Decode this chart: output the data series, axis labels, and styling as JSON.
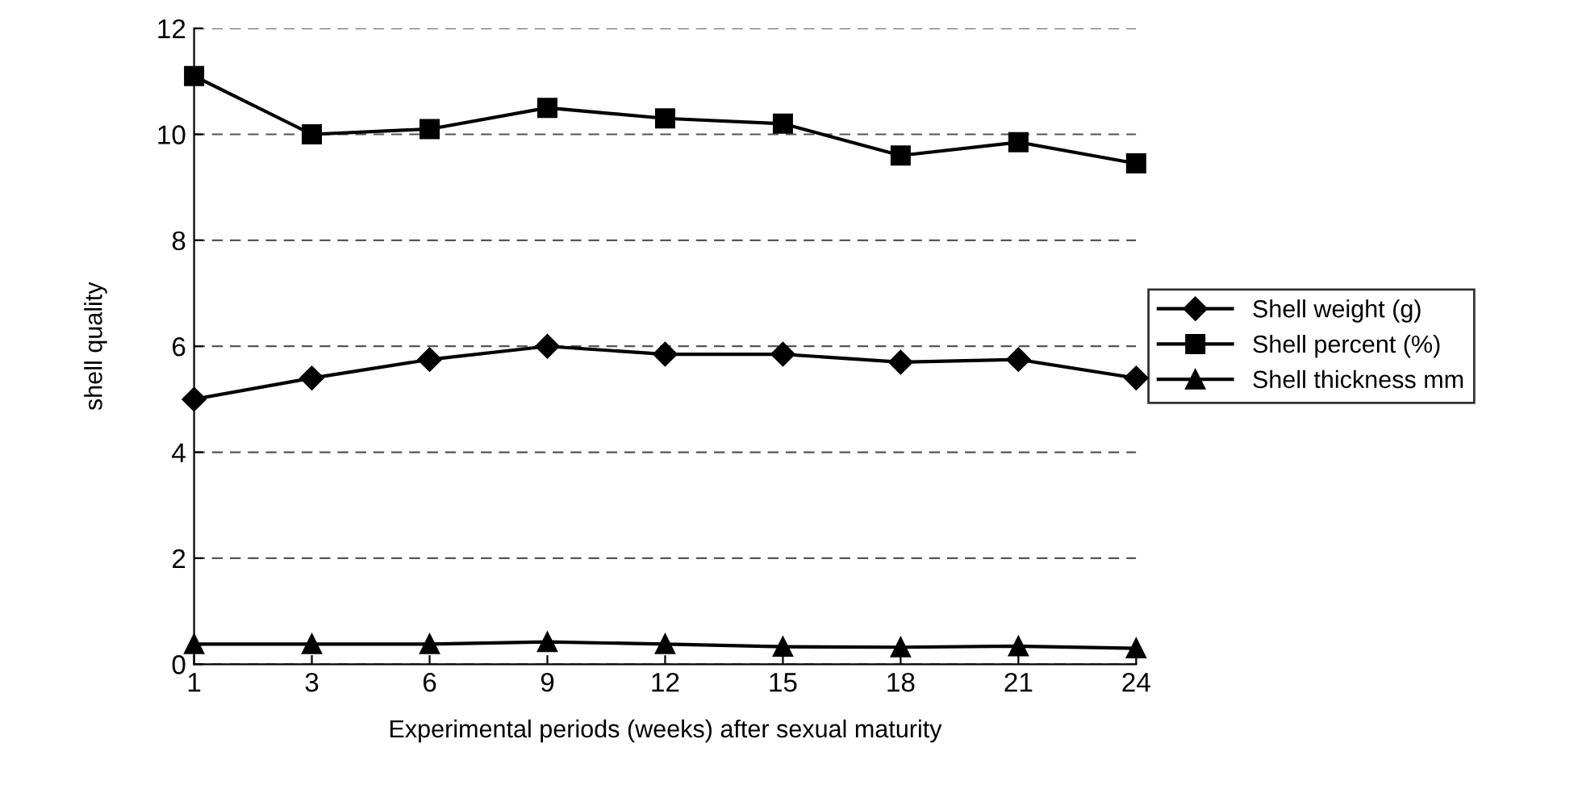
{
  "chart_data": {
    "type": "line",
    "xlabel": "Experimental periods (weeks) after sexual maturity",
    "ylabel": "shell quality",
    "categories": [
      "1",
      "3",
      "6",
      "9",
      "12",
      "15",
      "18",
      "21",
      "24"
    ],
    "series": [
      {
        "name": "Shell weight (g)",
        "color": "#000000",
        "marker": "diamond",
        "values": [
          5.0,
          5.4,
          5.75,
          6.0,
          5.85,
          5.85,
          5.7,
          5.75,
          5.4
        ]
      },
      {
        "name": "Shell percent (%)",
        "color": "#000000",
        "marker": "square",
        "values": [
          11.1,
          10.0,
          10.1,
          10.5,
          10.3,
          10.2,
          9.6,
          9.85,
          9.45
        ]
      },
      {
        "name": "Shell thickness mm",
        "color": "#000000",
        "marker": "triangle",
        "values": [
          0.38,
          0.38,
          0.38,
          0.42,
          0.38,
          0.33,
          0.32,
          0.34,
          0.3
        ]
      }
    ],
    "ylim": [
      0,
      12
    ],
    "yticks": [
      0,
      2,
      4,
      6,
      8,
      10,
      12
    ],
    "grid": "y",
    "legend": "right",
    "line_style": "solid"
  }
}
